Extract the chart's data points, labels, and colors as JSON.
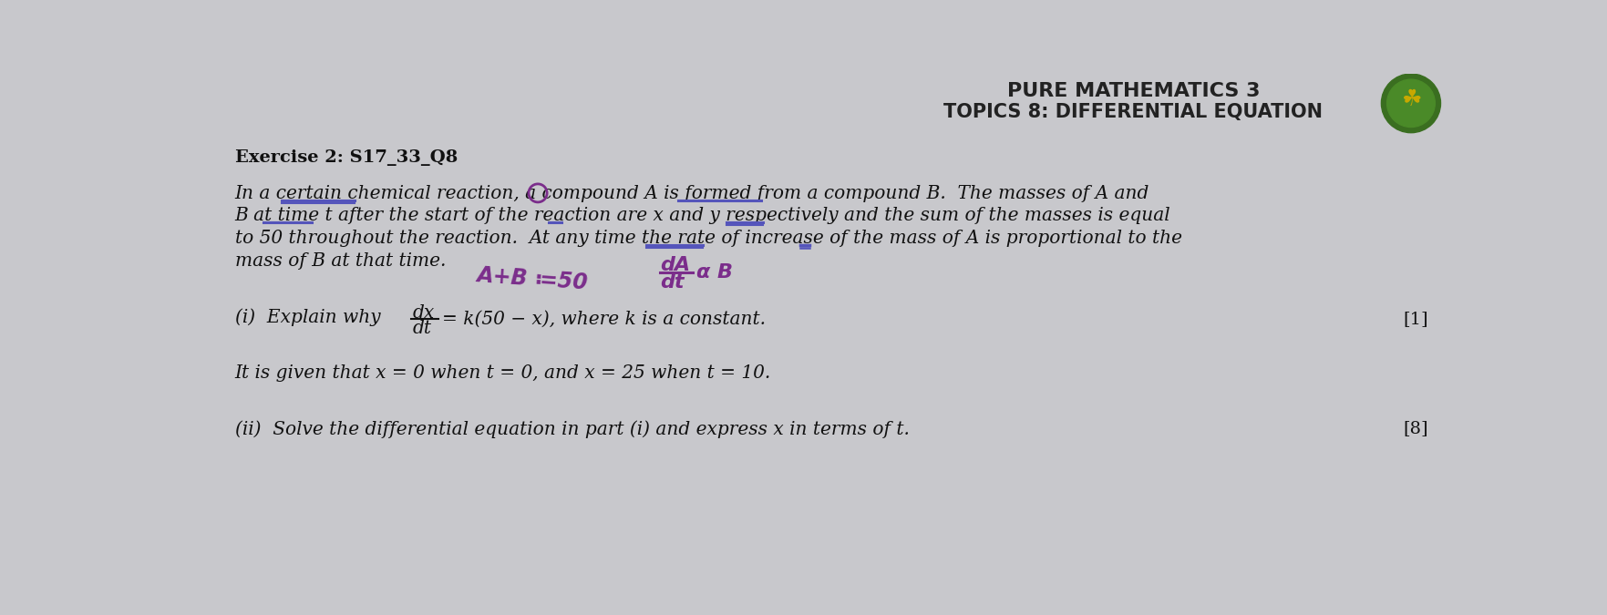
{
  "background_color": "#c8c8cc",
  "header_title": "PURE MATHEMATICS 3",
  "header_subtitle": "TOPICS 8: DIFFERENTIAL EQUATION",
  "exercise_label": "Exercise 2: S17_33_Q8",
  "para_line1": "In a certain chemical reaction, a compound A is formed from a compound B.  The masses of A and",
  "para_line2": "B at time t after the start of the reaction are x and y respectively and the sum of the masses is equal",
  "para_line3": "to 50 throughout the reaction.  At any time the rate of increase of the mass of A is proportional to the",
  "para_line4": "mass of B at that time.",
  "hw1": "A+B ≔50",
  "part_i_prefix": "(i)  Explain why",
  "part_i_suffix": "= k(50 − x), where k is a constant.",
  "part_i_marks": "[1]",
  "given_text": "It is given that x = 0 when t = 0, and x = 25 when t = 10.",
  "part_ii_text": "(ii)  Solve the differential equation in part (i) and express x in terms of t.",
  "part_ii_marks": "[8]",
  "text_color": "#111111",
  "hw_color": "#7B2D8B",
  "header_color": "#222222",
  "underline_color": "#5555bb",
  "double_underline_color": "#4444aa"
}
